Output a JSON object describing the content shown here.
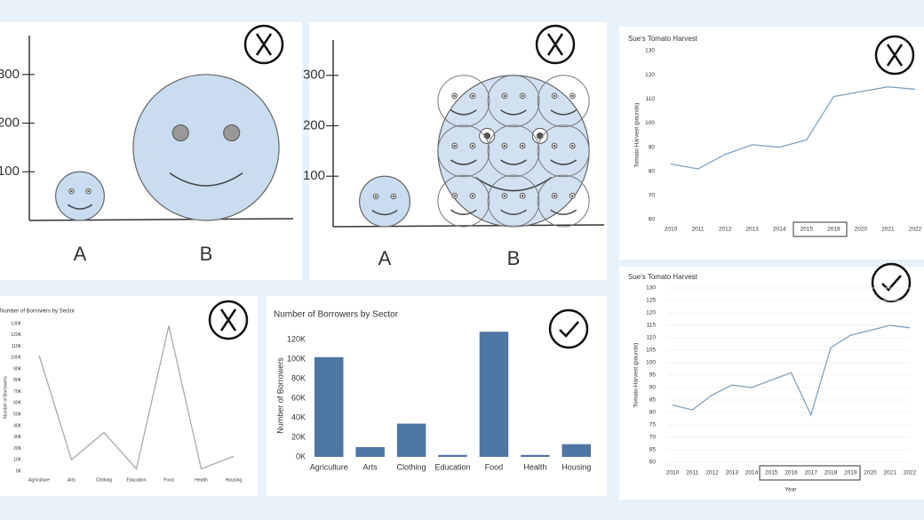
{
  "chart_data": [
    {
      "type": "bubble",
      "categories": [
        "A",
        "B"
      ],
      "values": [
        100,
        300
      ],
      "color": "#c9dcf0",
      "ylim": [
        0,
        380
      ],
      "yticks": [
        100,
        200,
        300
      ],
      "grid": false
    },
    {
      "type": "bubble",
      "categories": [
        "A",
        "B"
      ],
      "values": [
        100,
        300
      ],
      "color": "#c9dcf0",
      "ylim": [
        0,
        370
      ],
      "yticks": [
        100,
        200,
        300
      ],
      "grid": false
    },
    {
      "type": "line",
      "title": "Sue's Tomato Harvest",
      "y_label": "Tomato Harvest (pounds)",
      "categories": [
        "2010",
        "2011",
        "2012",
        "2013",
        "2014",
        "2015",
        "2019",
        "2020",
        "2021",
        "2022"
      ],
      "values": [
        83,
        81,
        87,
        91,
        90,
        93,
        111,
        113,
        115,
        114
      ],
      "color": "#7fa3c0",
      "ylim": [
        60,
        130
      ],
      "yticks": [
        60,
        70,
        80,
        90,
        100,
        110,
        120,
        130
      ],
      "grid": false
    },
    {
      "type": "line",
      "title": "Sue's Tomato Harvest",
      "y_label": "Tomato Harvest (pounds)",
      "x_label": "Year",
      "categories": [
        "2010",
        "2011",
        "2012",
        "2013",
        "2014",
        "2015",
        "2016",
        "2017",
        "2018",
        "2019",
        "2020",
        "2021",
        "2022"
      ],
      "values": [
        83,
        81,
        87,
        91,
        90,
        93,
        96,
        79,
        106,
        111,
        113,
        115,
        114
      ],
      "color": "#7fa3c0",
      "ylim": [
        60,
        130
      ],
      "yticks": [
        60,
        65,
        70,
        75,
        80,
        85,
        90,
        95,
        100,
        105,
        110,
        115,
        120,
        125,
        130
      ],
      "grid": true
    },
    {
      "type": "line",
      "title": "Number of Borrowers by Sector",
      "y_label": "Number of Borrowers",
      "categories": [
        "Agriculture",
        "Arts",
        "Clothing",
        "Education",
        "Food",
        "Health",
        "Housing"
      ],
      "values": [
        102000,
        10000,
        34000,
        2000,
        128000,
        2000,
        13000
      ],
      "color": "#aaaaaa",
      "ylim": [
        0,
        130000
      ],
      "yticks": [
        {
          "value": 0,
          "label": "0K"
        },
        {
          "value": 10000,
          "label": "10K"
        },
        {
          "value": 20000,
          "label": "20K"
        },
        {
          "value": 30000,
          "label": "30K"
        },
        {
          "value": 40000,
          "label": "40K"
        },
        {
          "value": 50000,
          "label": "50K"
        },
        {
          "value": 60000,
          "label": "60K"
        },
        {
          "value": 70000,
          "label": "70K"
        },
        {
          "value": 80000,
          "label": "80K"
        },
        {
          "value": 90000,
          "label": "90K"
        },
        {
          "value": 100000,
          "label": "100K"
        },
        {
          "value": 110000,
          "label": "110K"
        },
        {
          "value": 120000,
          "label": "120K"
        },
        {
          "value": 130000,
          "label": "130K"
        }
      ],
      "grid": false
    },
    {
      "type": "bar",
      "title": "Number of Borrowers by Sector",
      "y_label": "Number of Borrowers",
      "categories": [
        "Agriculture",
        "Arts",
        "Clothing",
        "Education",
        "Food",
        "Health",
        "Housing"
      ],
      "values": [
        102000,
        10000,
        34000,
        2000,
        128000,
        2000,
        13000
      ],
      "color": "#4e76a5",
      "ylim": [
        0,
        130000
      ],
      "yticks": [
        {
          "value": 0,
          "label": "0K"
        },
        {
          "value": 20000,
          "label": "20K"
        },
        {
          "value": 40000,
          "label": "40K"
        },
        {
          "value": 60000,
          "label": "60K"
        },
        {
          "value": 80000,
          "label": "80K"
        },
        {
          "value": 100000,
          "label": "100K"
        },
        {
          "value": 120000,
          "label": "120K"
        }
      ],
      "grid": false
    }
  ]
}
